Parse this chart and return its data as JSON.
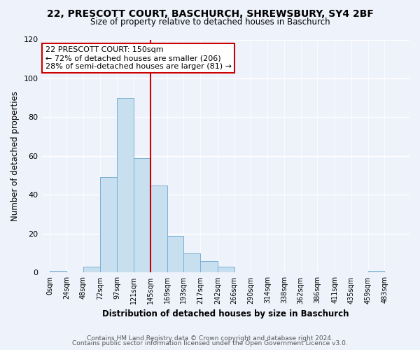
{
  "title": "22, PRESCOTT COURT, BASCHURCH, SHREWSBURY, SY4 2BF",
  "subtitle": "Size of property relative to detached houses in Baschurch",
  "xlabel": "Distribution of detached houses by size in Baschurch",
  "ylabel": "Number of detached properties",
  "bar_color": "#c8dff0",
  "bar_edge_color": "#7ab0d4",
  "bin_labels": [
    "0sqm",
    "24sqm",
    "48sqm",
    "72sqm",
    "97sqm",
    "121sqm",
    "145sqm",
    "169sqm",
    "193sqm",
    "217sqm",
    "242sqm",
    "266sqm",
    "290sqm",
    "314sqm",
    "338sqm",
    "362sqm",
    "386sqm",
    "411sqm",
    "435sqm",
    "459sqm",
    "483sqm"
  ],
  "bin_edges": [
    0,
    24,
    48,
    72,
    97,
    121,
    145,
    169,
    193,
    217,
    242,
    266,
    290,
    314,
    338,
    362,
    386,
    411,
    435,
    459,
    483,
    507
  ],
  "bar_heights": [
    1,
    0,
    3,
    49,
    90,
    59,
    45,
    19,
    10,
    6,
    3,
    0,
    0,
    0,
    0,
    0,
    0,
    0,
    0,
    1,
    0
  ],
  "ylim": [
    0,
    120
  ],
  "yticks": [
    0,
    20,
    40,
    60,
    80,
    100,
    120
  ],
  "property_line_x": 145,
  "property_line_color": "#cc0000",
  "annotation_line1": "22 PRESCOTT COURT: 150sqm",
  "annotation_line2": "← 72% of detached houses are smaller (206)",
  "annotation_line3": "28% of semi-detached houses are larger (81) →",
  "annotation_box_color": "#ffffff",
  "annotation_box_edge": "#cc0000",
  "footer_line1": "Contains HM Land Registry data © Crown copyright and database right 2024.",
  "footer_line2": "Contains public sector information licensed under the Open Government Licence v3.0.",
  "background_color": "#eef2fb"
}
